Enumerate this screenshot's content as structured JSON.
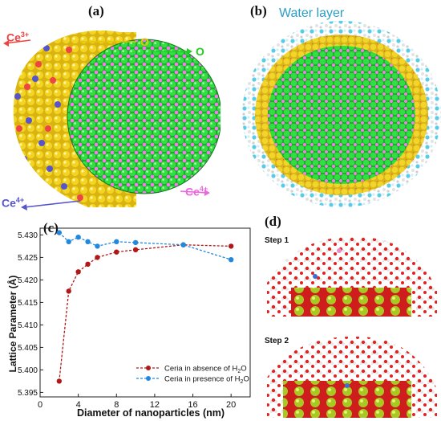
{
  "panels": {
    "a": {
      "label": "(a)",
      "annotations": {
        "ce3": "Ce",
        "ce3_sup": "3+",
        "o_top": "O",
        "o_right": "O",
        "ce4_right": "Ce",
        "ce4_right_sup": "4+",
        "ce4_left": "Ce",
        "ce4_left_sup": "4+"
      }
    },
    "b": {
      "label": "(b)",
      "water_label": "Water layer"
    },
    "c": {
      "label": "(c)"
    },
    "d": {
      "label": "(d)",
      "step1": "Step 1",
      "step2": "Step 2"
    }
  },
  "colors": {
    "ceria_green": "#22dd33",
    "oxygen_magenta": "#ee66dd",
    "ce3_red": "#ee4444",
    "oxygen_yellow": "#f2d020",
    "ce4_blue": "#5555cc",
    "water_cyan": "#44ccee",
    "absence_series": "#b01818",
    "presence_series": "#2288dd"
  },
  "chart_data": {
    "type": "line",
    "xlabel": "Diameter of nanoparticles (nm)",
    "ylabel": "Lattice Parameter (Å)",
    "xlim": [
      0,
      22
    ],
    "ylim": [
      5.394,
      5.4315
    ],
    "xticks": [
      "0",
      "4",
      "8",
      "12",
      "16",
      "20"
    ],
    "yticks": [
      "5.395",
      "5.400",
      "5.405",
      "5.410",
      "5.415",
      "5.420",
      "5.425",
      "5.430"
    ],
    "legend_position": "bottom-right",
    "grid": false,
    "series": [
      {
        "name": "Ceria in absence of H",
        "name_sub": "2",
        "name_tail": "O",
        "style": "dotted",
        "x": [
          2,
          3,
          4,
          5,
          6,
          8,
          10,
          15,
          20
        ],
        "y": [
          5.3975,
          5.4175,
          5.4218,
          5.4235,
          5.425,
          5.4262,
          5.4267,
          5.4278,
          5.4275
        ]
      },
      {
        "name": "Ceria in presence of H",
        "name_sub": "2",
        "name_tail": "O",
        "style": "dotted",
        "x": [
          2,
          3,
          4,
          5,
          6,
          8,
          10,
          15,
          20
        ],
        "y": [
          5.4305,
          5.4285,
          5.4295,
          5.4285,
          5.4275,
          5.4285,
          5.4283,
          5.4278,
          5.4245
        ]
      }
    ]
  }
}
